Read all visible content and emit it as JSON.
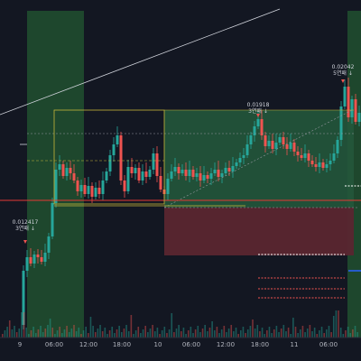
{
  "chart_data": {
    "type": "candlestick",
    "x_ticks": [
      "9",
      "06:00",
      "12:00",
      "18:00",
      "10",
      "06:00",
      "12:00",
      "18:00",
      "11",
      "06:00"
    ],
    "annotations": [
      {
        "price": "0.012417",
        "label": "3연패 ↓"
      },
      {
        "price": "0.01918",
        "label": "3연패 ↓"
      },
      {
        "price": "0.02042",
        "label": "5연패 ↓"
      }
    ],
    "colors": {
      "background": "#131722",
      "up": "#26a69a",
      "down": "#ef5350",
      "session_highlight": "#1f4a2e",
      "target_zone": "#24573b",
      "stop_zone": "#5a2630",
      "horizontal_line": "#e53935",
      "box_line": "#c8b73a"
    }
  }
}
